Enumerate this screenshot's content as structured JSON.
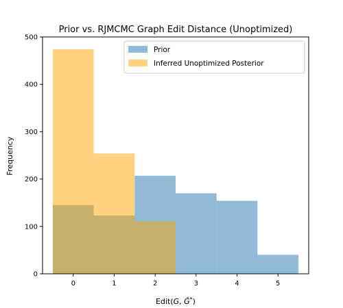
{
  "chart_data": {
    "type": "bar",
    "title": "Prior vs. RJMCMC Graph Edit Distance (Unoptimized)",
    "xlabel": "Edit(G, Ĝ*)",
    "ylabel": "Frequency",
    "xlim": [
      -0.75,
      5.75
    ],
    "ylim": [
      0,
      500
    ],
    "x_ticks": [
      0,
      1,
      2,
      3,
      4,
      5
    ],
    "y_ticks": [
      0,
      100,
      200,
      300,
      400,
      500
    ],
    "grid": false,
    "legend_position": "top-right",
    "bin_width": 1,
    "series": [
      {
        "name": "Prior",
        "color": "#1f77b4",
        "opacity": 0.5,
        "x": [
          0,
          1,
          2,
          3,
          4,
          5
        ],
        "values": [
          145,
          123,
          207,
          170,
          154,
          40
        ]
      },
      {
        "name": "Inferred Unoptimized Posterior",
        "color": "#ffa500",
        "opacity": 0.5,
        "x": [
          0,
          1,
          2
        ],
        "values": [
          474,
          254,
          111
        ]
      }
    ]
  }
}
